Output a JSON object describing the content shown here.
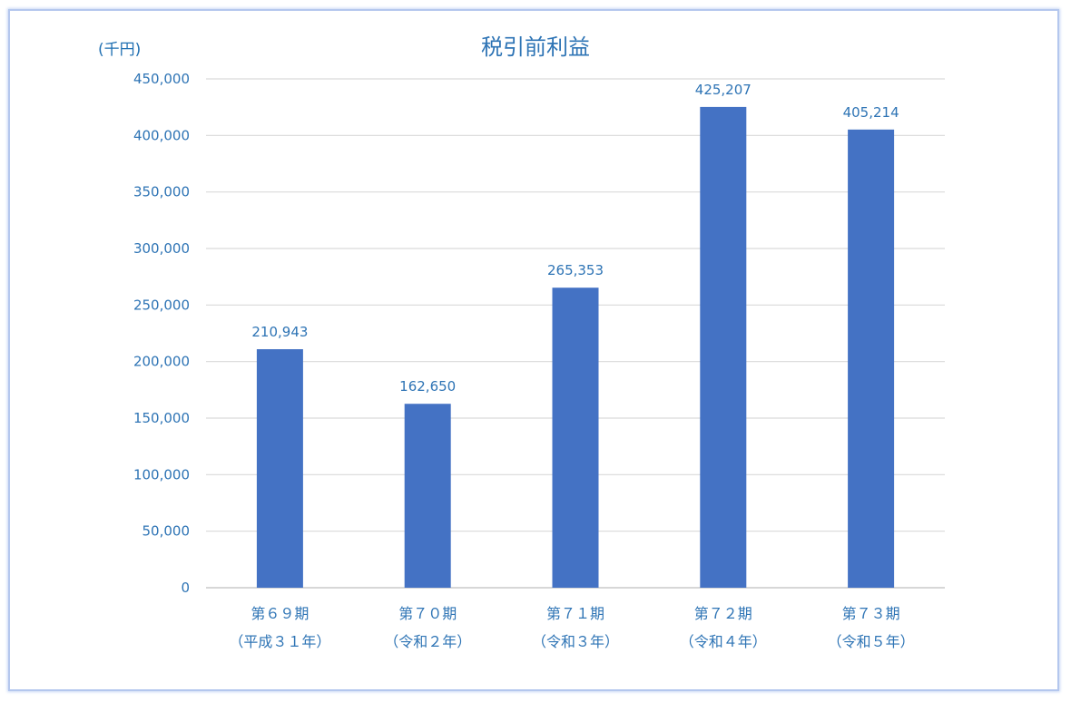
{
  "chart_data": {
    "type": "bar",
    "title": "税引前利益",
    "unit_label": "(千円)",
    "categories": [
      {
        "line1": "第６９期",
        "line2": "（平成３１年）"
      },
      {
        "line1": "第７０期",
        "line2": "（令和２年）"
      },
      {
        "line1": "第７１期",
        "line2": "（令和３年）"
      },
      {
        "line1": "第７２期",
        "line2": "（令和４年）"
      },
      {
        "line1": "第７３期",
        "line2": "（令和５年）"
      }
    ],
    "values": [
      210943,
      162650,
      265353,
      425207,
      405214
    ],
    "value_labels": [
      "210,943",
      "162,650",
      "265,353",
      "425,207",
      "405,214"
    ],
    "ylim": [
      0,
      450000
    ],
    "yticks": [
      0,
      50000,
      100000,
      150000,
      200000,
      250000,
      300000,
      350000,
      400000,
      450000
    ],
    "ytick_labels": [
      "0",
      "50,000",
      "100,000",
      "150,000",
      "200,000",
      "250,000",
      "300,000",
      "350,000",
      "400,000",
      "450,000"
    ],
    "grid": true,
    "bar_color": "#4472c4",
    "grid_color": "#d9d9d9"
  }
}
